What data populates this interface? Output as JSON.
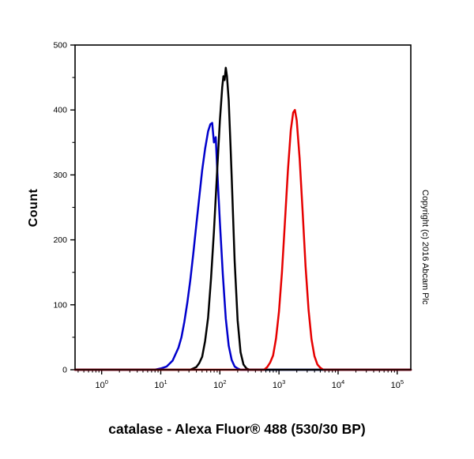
{
  "chart": {
    "title": "catalase - Alexa Fluor® 488 (530/30 BP)",
    "ylabel": "Count",
    "copyright": "Copyright (c) 2016 Abcam Plc"
  },
  "chart_data": {
    "type": "line",
    "chart_kind": "flow-cytometry-overlay-histogram",
    "title": "catalase - Alexa Fluor® 488 (530/30 BP)",
    "xlabel": "",
    "ylabel": "Count",
    "x_scale": "log10",
    "x_range_log10": [
      -0.45,
      5.23
    ],
    "ylim": [
      0,
      500
    ],
    "yticks": [
      0,
      100,
      200,
      300,
      400,
      500
    ],
    "y_minor_step": 50,
    "xtick_exponents": [
      0,
      1,
      2,
      3,
      4,
      5
    ],
    "grid": false,
    "legend": "none",
    "frame_color": "#000000",
    "series": [
      {
        "name": "blue-histogram",
        "color": "#0000cc",
        "peak_x": 74,
        "peak_count": 380,
        "points_log10x_count": [
          [
            0.9,
            0
          ],
          [
            1.0,
            2
          ],
          [
            1.1,
            5
          ],
          [
            1.2,
            14
          ],
          [
            1.3,
            34
          ],
          [
            1.35,
            50
          ],
          [
            1.4,
            74
          ],
          [
            1.45,
            104
          ],
          [
            1.5,
            138
          ],
          [
            1.55,
            178
          ],
          [
            1.6,
            222
          ],
          [
            1.65,
            264
          ],
          [
            1.7,
            307
          ],
          [
            1.75,
            340
          ],
          [
            1.8,
            367
          ],
          [
            1.84,
            378
          ],
          [
            1.87,
            380
          ],
          [
            1.9,
            350
          ],
          [
            1.93,
            358
          ],
          [
            1.96,
            300
          ],
          [
            2.0,
            228
          ],
          [
            2.05,
            146
          ],
          [
            2.1,
            79
          ],
          [
            2.15,
            37
          ],
          [
            2.2,
            15
          ],
          [
            2.25,
            5
          ],
          [
            2.3,
            2
          ],
          [
            2.35,
            0
          ]
        ]
      },
      {
        "name": "black-histogram",
        "color": "#000000",
        "peak_x": 126,
        "peak_count": 465,
        "points_log10x_count": [
          [
            1.5,
            0
          ],
          [
            1.55,
            2
          ],
          [
            1.6,
            4
          ],
          [
            1.65,
            10
          ],
          [
            1.7,
            20
          ],
          [
            1.75,
            44
          ],
          [
            1.8,
            80
          ],
          [
            1.85,
            140
          ],
          [
            1.9,
            213
          ],
          [
            1.95,
            300
          ],
          [
            2.0,
            383
          ],
          [
            2.04,
            435
          ],
          [
            2.06,
            452
          ],
          [
            2.08,
            446
          ],
          [
            2.1,
            465
          ],
          [
            2.12,
            452
          ],
          [
            2.15,
            415
          ],
          [
            2.18,
            345
          ],
          [
            2.2,
            296
          ],
          [
            2.25,
            168
          ],
          [
            2.3,
            76
          ],
          [
            2.35,
            27
          ],
          [
            2.4,
            8
          ],
          [
            2.45,
            2
          ],
          [
            2.5,
            0
          ]
        ]
      },
      {
        "name": "red-histogram",
        "color": "#e60000",
        "peak_x": 1860,
        "peak_count": 400,
        "points_log10x_count": [
          [
            2.75,
            0
          ],
          [
            2.8,
            4
          ],
          [
            2.85,
            11
          ],
          [
            2.9,
            22
          ],
          [
            2.95,
            48
          ],
          [
            3.0,
            89
          ],
          [
            3.05,
            150
          ],
          [
            3.1,
            226
          ],
          [
            3.15,
            306
          ],
          [
            3.2,
            369
          ],
          [
            3.24,
            396
          ],
          [
            3.27,
            400
          ],
          [
            3.3,
            384
          ],
          [
            3.35,
            325
          ],
          [
            3.4,
            243
          ],
          [
            3.45,
            159
          ],
          [
            3.5,
            92
          ],
          [
            3.55,
            47
          ],
          [
            3.6,
            21
          ],
          [
            3.65,
            8
          ],
          [
            3.7,
            3
          ],
          [
            3.75,
            0
          ]
        ]
      }
    ]
  }
}
